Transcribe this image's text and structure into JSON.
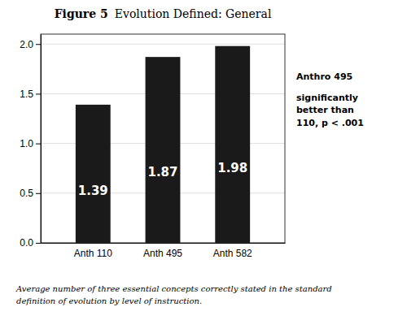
{
  "chart_data": {
    "type": "bar",
    "title": "Figure 5",
    "subtitle": "Evolution Defined: General",
    "categories": [
      "Anth 110",
      "Anth 495",
      "Anth 582"
    ],
    "values": [
      1.39,
      1.87,
      1.98
    ],
    "color": "#1a1a1a",
    "data_labels": true,
    "ylim": [
      0,
      2.1
    ],
    "yticks": [
      {
        "value": 0,
        "label": "0.0"
      },
      0.5,
      {
        "value": 1.0,
        "label": "1.0"
      },
      1.5,
      {
        "value": 2.0,
        "label": "2.0"
      }
    ],
    "grid": true,
    "annotations": [
      "Anthro 495",
      "significantly\nbetter than\n110, p < .001"
    ],
    "caption": "Average number of three essential concepts correctly stated in the standard\ndefinition of evolution by level of instruction."
  }
}
